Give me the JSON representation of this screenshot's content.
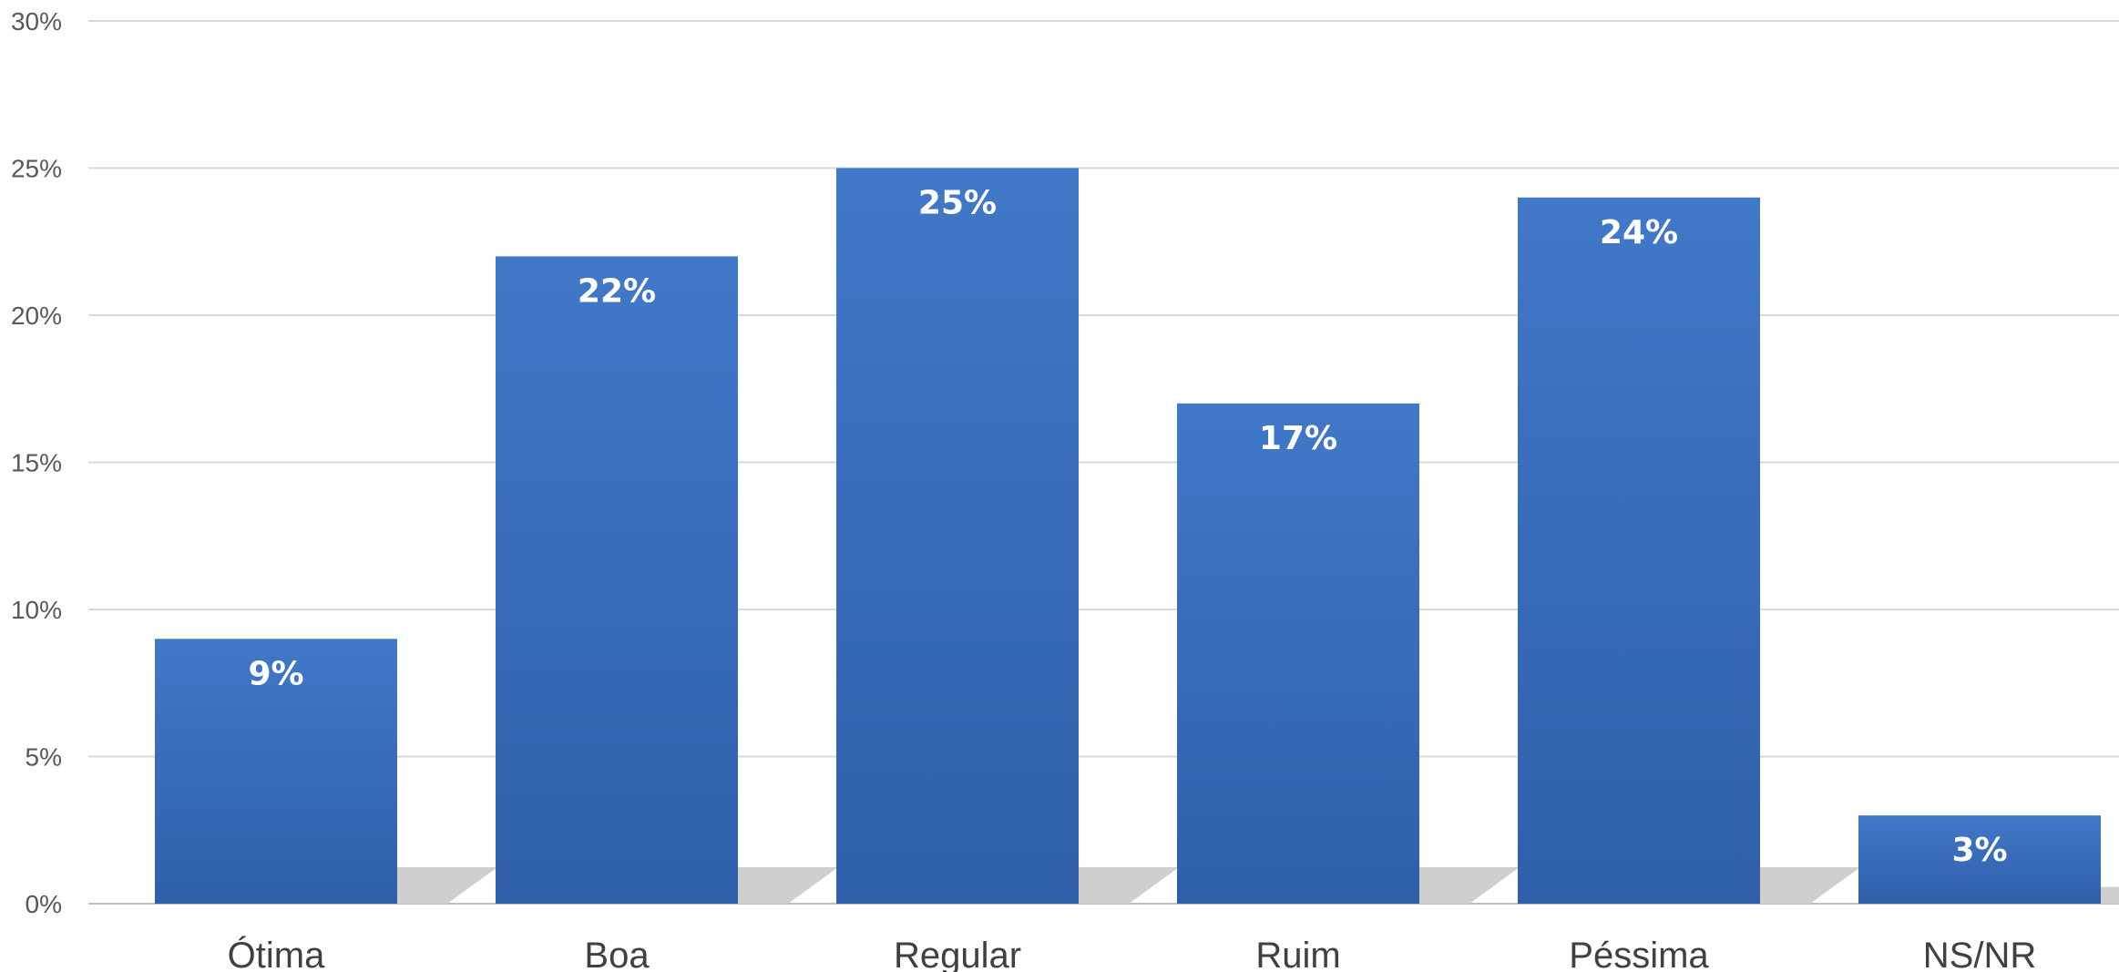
{
  "chart_data": {
    "type": "bar",
    "categories": [
      "Ótima",
      "Boa",
      "Regular",
      "Ruim",
      "Péssima",
      "NS/NR"
    ],
    "values": [
      9,
      22,
      25,
      17,
      24,
      3
    ],
    "data_labels": [
      "9%",
      "22%",
      "25%",
      "17%",
      "24%",
      "3%"
    ],
    "y_ticks": [
      "0%",
      "5%",
      "10%",
      "15%",
      "20%",
      "25%",
      "30%"
    ],
    "ylim": [
      0,
      30
    ],
    "y_step": 5,
    "grid": true,
    "title": "",
    "xlabel": "",
    "ylabel": "",
    "colors": {
      "bar_top": "#4178C8",
      "bar_bottom": "#2F5FAA",
      "grid": "#D9D9D9",
      "shadow": "#CFCFCF"
    }
  }
}
